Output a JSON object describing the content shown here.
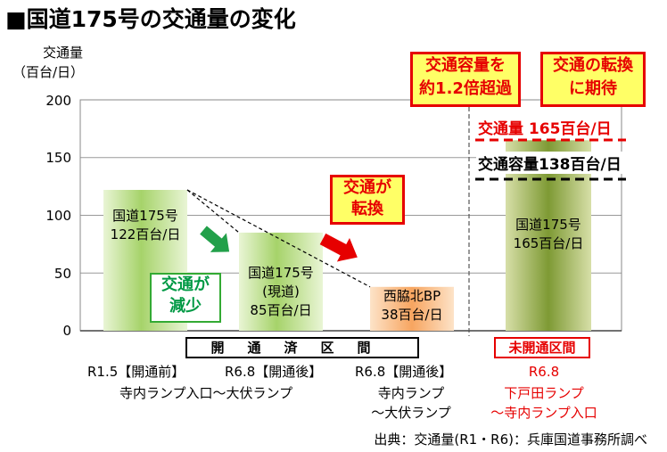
{
  "title": "■国道175号の交通量の変化",
  "y_axis": {
    "label_line1": "交通量",
    "label_line2": "（百台/日）"
  },
  "chart_data": {
    "type": "bar",
    "categories": [
      "R1.5【開通前】",
      "R6.8【開通後】",
      "R6.8【開通後】",
      "R6.8"
    ],
    "values": [
      122,
      85,
      38,
      165
    ],
    "ylim": [
      0,
      200
    ],
    "yticks": [
      0,
      50,
      100,
      150,
      200
    ],
    "grid": true,
    "bars": [
      {
        "line1": "国道175号",
        "line2": "122百台/日",
        "line3": "",
        "color": "#8cc63f"
      },
      {
        "line1": "国道175号",
        "line2": "(現道)",
        "line3": "85百台/日",
        "color": "#8cc63f"
      },
      {
        "line1": "西脇北BP",
        "line2": "38百台/日",
        "line3": "",
        "color": "#f4a460"
      },
      {
        "line1": "国道175号",
        "line2": "165百台/日",
        "line3": "",
        "color": "#8a9a3a"
      }
    ],
    "reference_lines": [
      {
        "value": 165,
        "label": "交通量 165百台/日",
        "color": "#e60000"
      },
      {
        "value": 138,
        "label": "交通容量138百台/日",
        "color": "#000000"
      }
    ]
  },
  "annotations": {
    "decrease": "交通が\n減少",
    "shift": "交通が\n転換",
    "over_capacity": "交通容量を\n約1.2倍超過",
    "expect_shift": "交通の転換\nに期待"
  },
  "section_label": "開通済区間",
  "unopened_label": "未開通区間",
  "category_sublabels": {
    "c1_line2": "寺内ランプ入口～大伏ランプ",
    "c3_line2": "寺内ランプ",
    "c3_line3": "～大伏ランプ",
    "c4_line2": "下戸田ランプ",
    "c4_line3": "～寺内ランプ入口"
  },
  "source": "出典：交通量(R1・R6)：兵庫国道事務所調べ"
}
